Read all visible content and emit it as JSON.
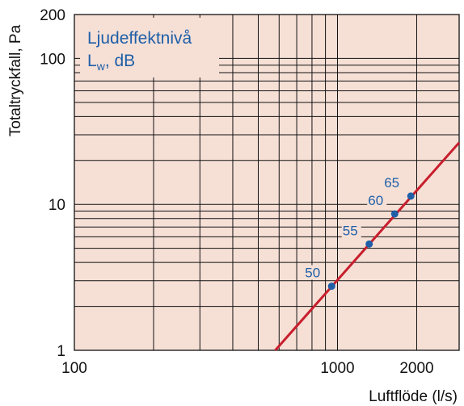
{
  "colors": {
    "plot_background": "#f6e0d6",
    "grid": "#111111",
    "line": "#c81e2d",
    "points": "#1f5fa8",
    "labels": "#1f5fa8"
  },
  "chart_data": {
    "type": "line",
    "x_scale": "log",
    "y_scale": "log",
    "xlim": [
      100,
      2900
    ],
    "ylim": [
      1,
      200
    ],
    "xlabel": "Luftflöde (l/s)",
    "ylabel": "Totaltryckfall, Pa",
    "x_ticks": [
      {
        "value": 100,
        "label": "100"
      },
      {
        "value": 1000,
        "label": "1000"
      },
      {
        "value": 2000,
        "label": "2000"
      }
    ],
    "y_ticks": [
      {
        "value": 1,
        "label": "1"
      },
      {
        "value": 10,
        "label": "10"
      },
      {
        "value": 100,
        "label": "100"
      },
      {
        "value": 200,
        "label": "200"
      }
    ],
    "legend": {
      "line1": "Ljudeffektnivå",
      "line2_main": "L",
      "line2_sub": "w",
      "line2_rest": ", dB"
    },
    "series": [
      {
        "x": [
          580,
          2900
        ],
        "y": [
          1,
          26.5
        ]
      }
    ],
    "points": [
      {
        "x": 950,
        "y": 2.75,
        "label": "50"
      },
      {
        "x": 1320,
        "y": 5.35,
        "label": "55"
      },
      {
        "x": 1650,
        "y": 8.6,
        "label": "60"
      },
      {
        "x": 1900,
        "y": 11.4,
        "label": "65"
      }
    ]
  }
}
